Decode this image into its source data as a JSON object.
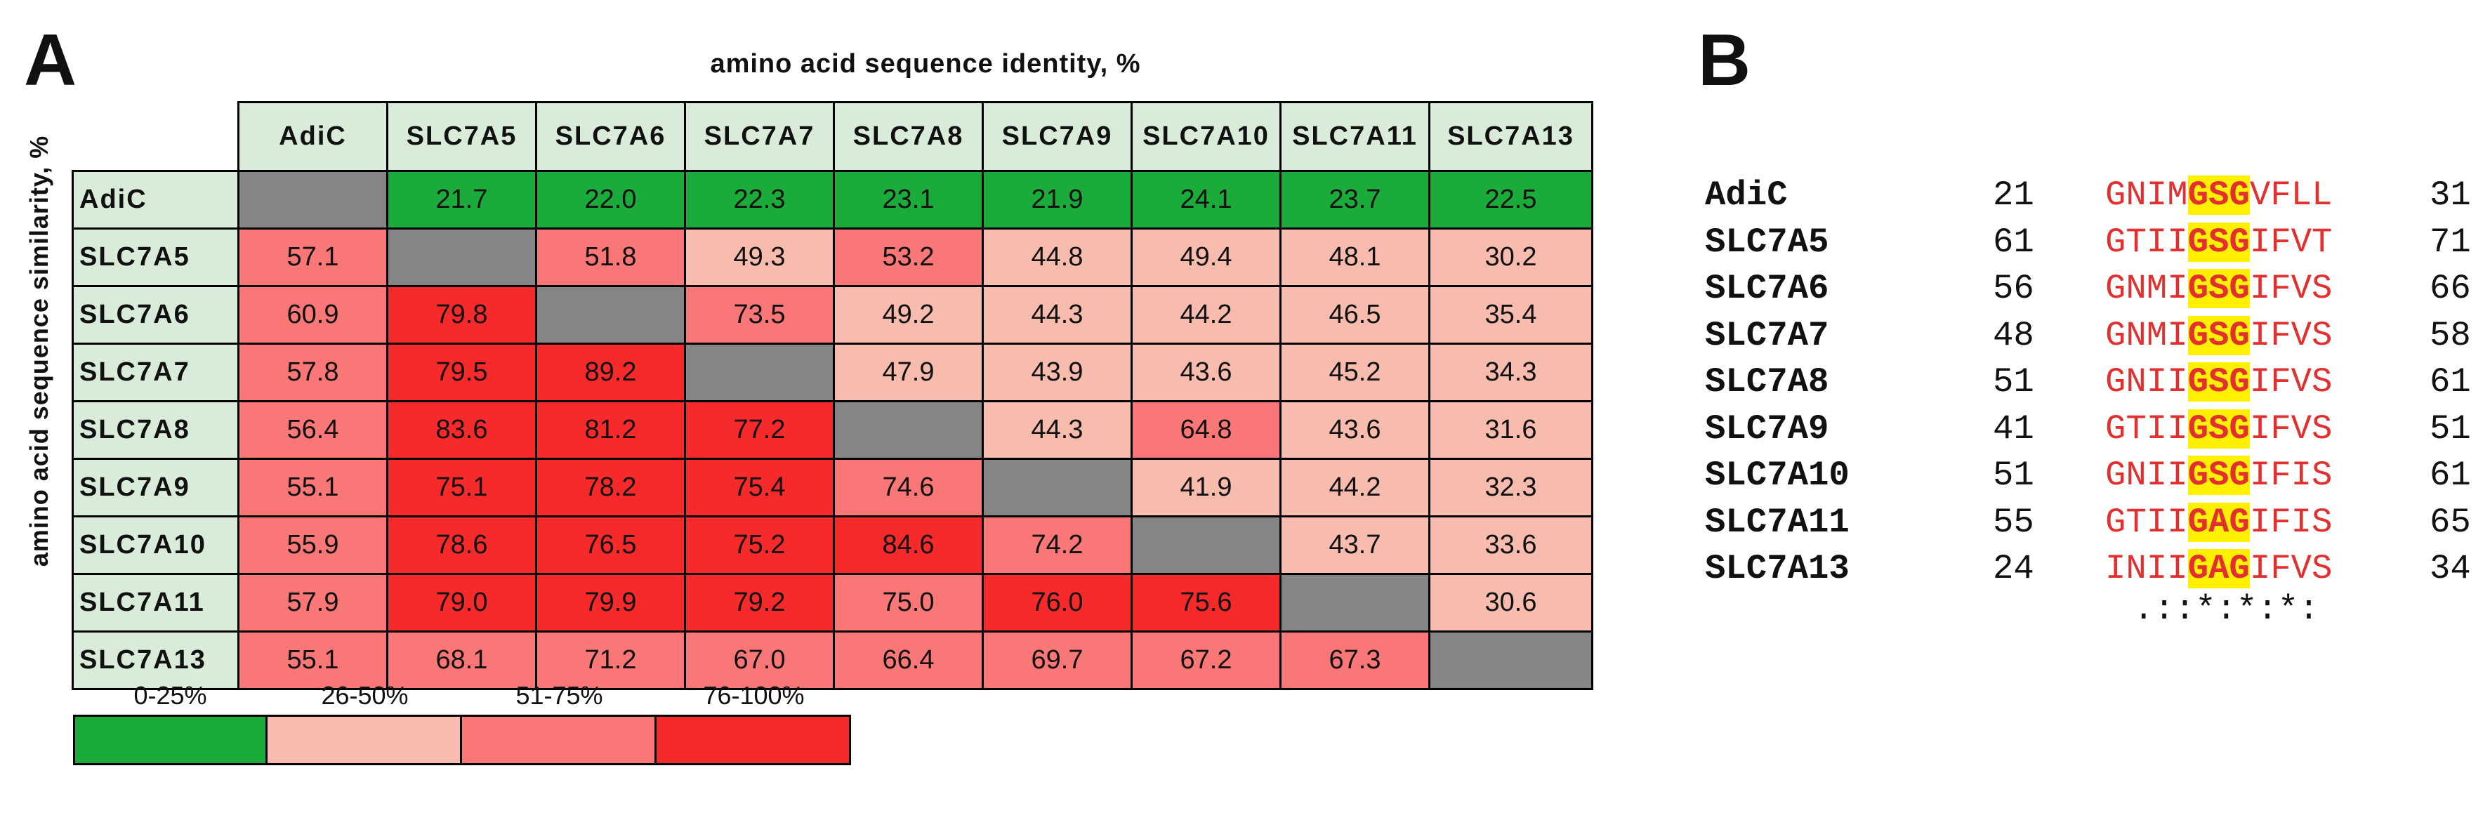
{
  "panel_a": {
    "label": "A",
    "col_title": "amino acid sequence identity, %",
    "row_title": "amino acid sequence similarity, %",
    "columns": [
      "AdiC",
      "SLC7A5",
      "SLC7A6",
      "SLC7A7",
      "SLC7A8",
      "SLC7A9",
      "SLC7A10",
      "SLC7A11",
      "SLC7A13"
    ],
    "rows": [
      {
        "name": "AdiC",
        "cells": [
          "",
          "21.7",
          "22.0",
          "22.3",
          "23.1",
          "21.9",
          "24.1",
          "23.7",
          "22.5"
        ]
      },
      {
        "name": "SLC7A5",
        "cells": [
          "57.1",
          "",
          "51.8",
          "49.3",
          "53.2",
          "44.8",
          "49.4",
          "48.1",
          "30.2"
        ]
      },
      {
        "name": "SLC7A6",
        "cells": [
          "60.9",
          "79.8",
          "",
          "73.5",
          "49.2",
          "44.3",
          "44.2",
          "46.5",
          "35.4"
        ]
      },
      {
        "name": "SLC7A7",
        "cells": [
          "57.8",
          "79.5",
          "89.2",
          "",
          "47.9",
          "43.9",
          "43.6",
          "45.2",
          "34.3"
        ]
      },
      {
        "name": "SLC7A8",
        "cells": [
          "56.4",
          "83.6",
          "81.2",
          "77.2",
          "",
          "44.3",
          "64.8",
          "43.6",
          "31.6"
        ]
      },
      {
        "name": "SLC7A9",
        "cells": [
          "55.1",
          "75.1",
          "78.2",
          "75.4",
          "74.6",
          "",
          "41.9",
          "44.2",
          "32.3"
        ]
      },
      {
        "name": "SLC7A10",
        "cells": [
          "55.9",
          "78.6",
          "76.5",
          "75.2",
          "84.6",
          "74.2",
          "",
          "43.7",
          "33.6"
        ]
      },
      {
        "name": "SLC7A11",
        "cells": [
          "57.9",
          "79.0",
          "79.9",
          "79.2",
          "75.0",
          "76.0",
          "75.6",
          "",
          "30.6"
        ]
      },
      {
        "name": "SLC7A13",
        "cells": [
          "55.1",
          "68.1",
          "71.2",
          "67.0",
          "66.4",
          "69.7",
          "67.2",
          "67.3",
          ""
        ]
      }
    ],
    "legend": [
      {
        "label": "0-25%",
        "color": "#1aab3a"
      },
      {
        "label": "26-50%",
        "color": "#f7bcae"
      },
      {
        "label": "51-75%",
        "color": "#f97777"
      },
      {
        "label": "76-100%",
        "color": "#f62a2a"
      }
    ],
    "colors": {
      "diagonal": "#858585",
      "header_bg": "#d9ecd9"
    }
  },
  "panel_b": {
    "label": "B",
    "alignment": [
      {
        "name": "AdiC",
        "start": "21",
        "pre": "GNIM",
        "core": "GSG",
        "post": "VFLL",
        "end": "31"
      },
      {
        "name": "SLC7A5",
        "start": "61",
        "pre": "GTII",
        "core": "GSG",
        "post": "IFVT",
        "end": "71"
      },
      {
        "name": "SLC7A6",
        "start": "56",
        "pre": "GNMI",
        "core": "GSG",
        "post": "IFVS",
        "end": "66"
      },
      {
        "name": "SLC7A7",
        "start": "48",
        "pre": "GNMI",
        "core": "GSG",
        "post": "IFVS",
        "end": "58"
      },
      {
        "name": "SLC7A8",
        "start": "51",
        "pre": "GNII",
        "core": "GSG",
        "post": "IFVS",
        "end": "61"
      },
      {
        "name": "SLC7A9",
        "start": "41",
        "pre": "GTII",
        "core": "GSG",
        "post": "IFVS",
        "end": "51"
      },
      {
        "name": "SLC7A10",
        "start": "51",
        "pre": "GNII",
        "core": "GSG",
        "post": "IFIS",
        "end": "61"
      },
      {
        "name": "SLC7A11",
        "start": "55",
        "pre": "GTII",
        "core": "GAG",
        "post": "IFIS",
        "end": "65"
      },
      {
        "name": "SLC7A13",
        "start": "24",
        "pre": "INII",
        "core": "GAG",
        "post": "IFVS",
        "end": "34"
      }
    ],
    "consensus": ".::*:*:*:"
  }
}
